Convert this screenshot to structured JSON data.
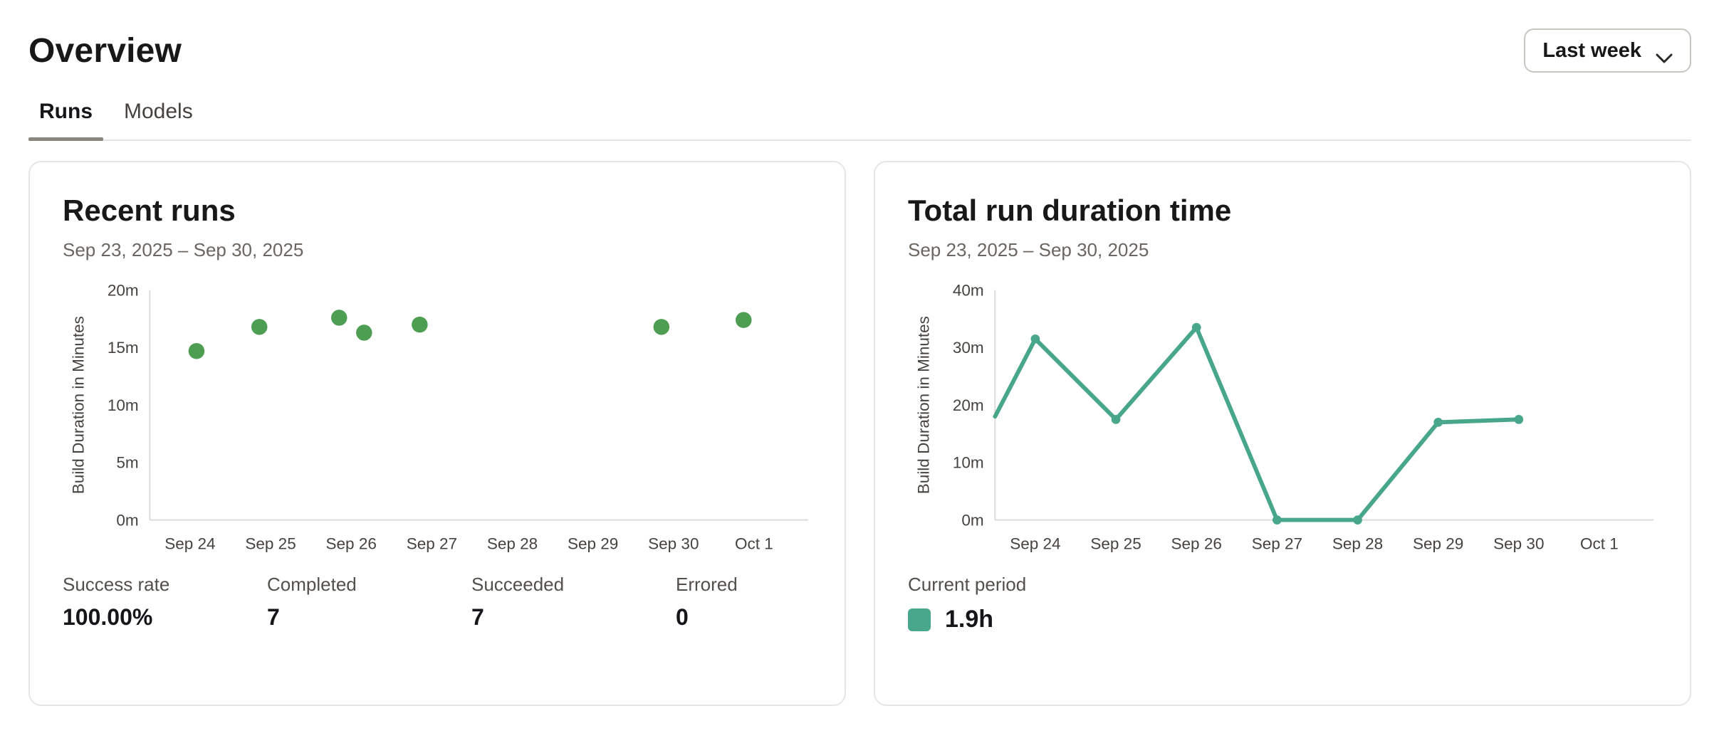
{
  "page": {
    "title": "Overview"
  },
  "period_selector": {
    "label": "Last week",
    "icon": "chevron-down-icon"
  },
  "tabs": [
    {
      "label": "Runs",
      "active": true
    },
    {
      "label": "Models",
      "active": false
    }
  ],
  "cards": {
    "recent_runs": {
      "title": "Recent runs",
      "date_range": "Sep 23, 2025 – Sep 30, 2025",
      "stats": [
        {
          "label": "Success rate",
          "value": "100.00%"
        },
        {
          "label": "Completed",
          "value": "7"
        },
        {
          "label": "Succeeded",
          "value": "7"
        },
        {
          "label": "Errored",
          "value": "0"
        }
      ],
      "chart_data": {
        "type": "scatter",
        "title": "Recent runs",
        "ylabel": "Build Duration in Minutes",
        "x_tick_labels": [
          "Sep 24",
          "Sep 25",
          "Sep 26",
          "Sep 27",
          "Sep 28",
          "Sep 29",
          "Sep 30",
          "Oct 1"
        ],
        "x_domain_days": 8,
        "y_ticks": [
          0,
          5,
          10,
          15,
          20
        ],
        "y_tick_suffix": "m",
        "ylim": [
          0,
          20
        ],
        "grid": false,
        "point_color": "#4d9e52",
        "axis_color": "#dedcd9",
        "points": [
          {
            "date": "Sep 24",
            "day_index": 0.08,
            "minutes": 14.7
          },
          {
            "date": "Sep 25",
            "day_index": 0.86,
            "minutes": 16.8
          },
          {
            "date": "Sep 26",
            "day_index": 1.85,
            "minutes": 17.6
          },
          {
            "date": "Sep 26",
            "day_index": 2.16,
            "minutes": 16.3
          },
          {
            "date": "Sep 27",
            "day_index": 2.85,
            "minutes": 17.0
          },
          {
            "date": "Sep 30",
            "day_index": 5.85,
            "minutes": 16.8
          },
          {
            "date": "Oct 1",
            "day_index": 6.87,
            "minutes": 17.4
          }
        ]
      }
    },
    "total_run_duration": {
      "title": "Total run duration time",
      "date_range": "Sep 23, 2025 – Sep 30, 2025",
      "legend": {
        "label": "Current period",
        "value": "1.9h",
        "swatch_color": "#48a78a"
      },
      "chart_data": {
        "type": "line",
        "title": "Total run duration time",
        "ylabel": "Build Duration in Minutes",
        "x_tick_labels": [
          "Sep 24",
          "Sep 25",
          "Sep 26",
          "Sep 27",
          "Sep 28",
          "Sep 29",
          "Sep 30",
          "Oct 1"
        ],
        "x_domain_days": 8,
        "y_ticks": [
          0,
          10,
          20,
          30,
          40
        ],
        "y_tick_suffix": "m",
        "ylim": [
          0,
          40
        ],
        "grid": false,
        "line_color": "#48a78a",
        "axis_color": "#dedcd9",
        "series_name": "Current period",
        "points": [
          {
            "date": "Sep 23",
            "day_index": -0.5,
            "minutes": 18,
            "marker": false,
            "clipped": true
          },
          {
            "date": "Sep 24",
            "day_index": 0,
            "minutes": 31.5
          },
          {
            "date": "Sep 25",
            "day_index": 1,
            "minutes": 17.5
          },
          {
            "date": "Sep 26",
            "day_index": 2,
            "minutes": 33.5
          },
          {
            "date": "Sep 27",
            "day_index": 3,
            "minutes": 0
          },
          {
            "date": "Sep 28",
            "day_index": 4,
            "minutes": 0
          },
          {
            "date": "Sep 29",
            "day_index": 5,
            "minutes": 17
          },
          {
            "date": "Sep 30",
            "day_index": 6,
            "minutes": 17.5
          }
        ]
      }
    }
  }
}
